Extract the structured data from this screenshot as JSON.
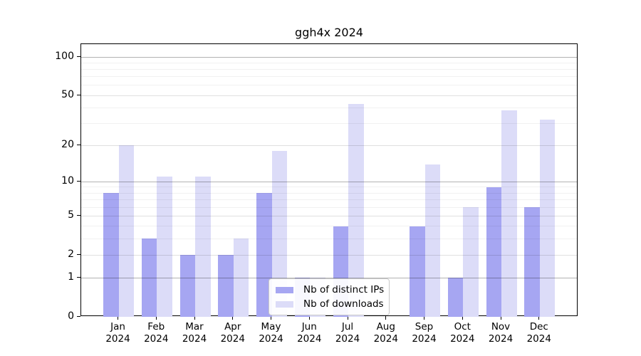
{
  "chart_data": {
    "type": "bar",
    "title": "ggh4x 2024",
    "year_label": "2024",
    "categories": [
      "Jan",
      "Feb",
      "Mar",
      "Apr",
      "May",
      "Jun",
      "Jul",
      "Aug",
      "Sep",
      "Oct",
      "Nov",
      "Dec"
    ],
    "series": [
      {
        "name": "Nb of distinct IPs",
        "color": "#a6a6f2",
        "values": [
          8,
          3,
          2,
          2,
          8,
          1,
          4,
          0,
          4,
          1,
          9,
          6
        ]
      },
      {
        "name": "Nb of downloads",
        "color": "#dcdcf8",
        "values": [
          20,
          11,
          11,
          3,
          18,
          1,
          43,
          0,
          14,
          6,
          38,
          32
        ]
      }
    ],
    "yscale": "log10(1+v)",
    "yticks": [
      0,
      1,
      2,
      5,
      10,
      20,
      50,
      100
    ],
    "ylim": [
      0,
      126
    ],
    "grid": {
      "decade": [
        1,
        10,
        100
      ],
      "major": [
        2,
        5,
        20,
        50
      ],
      "minor": [
        3,
        4,
        6,
        7,
        8,
        9,
        30,
        40,
        60,
        70,
        80,
        90
      ]
    },
    "grid_colors": {
      "decade": "rgba(0,0,0,0.30)",
      "major": "rgba(0,0,0,0.12)",
      "minor": "rgba(0,0,0,0.055)"
    },
    "legend": {
      "position": "lower-center"
    },
    "axis_color": "#000000",
    "background": "#ffffff"
  }
}
